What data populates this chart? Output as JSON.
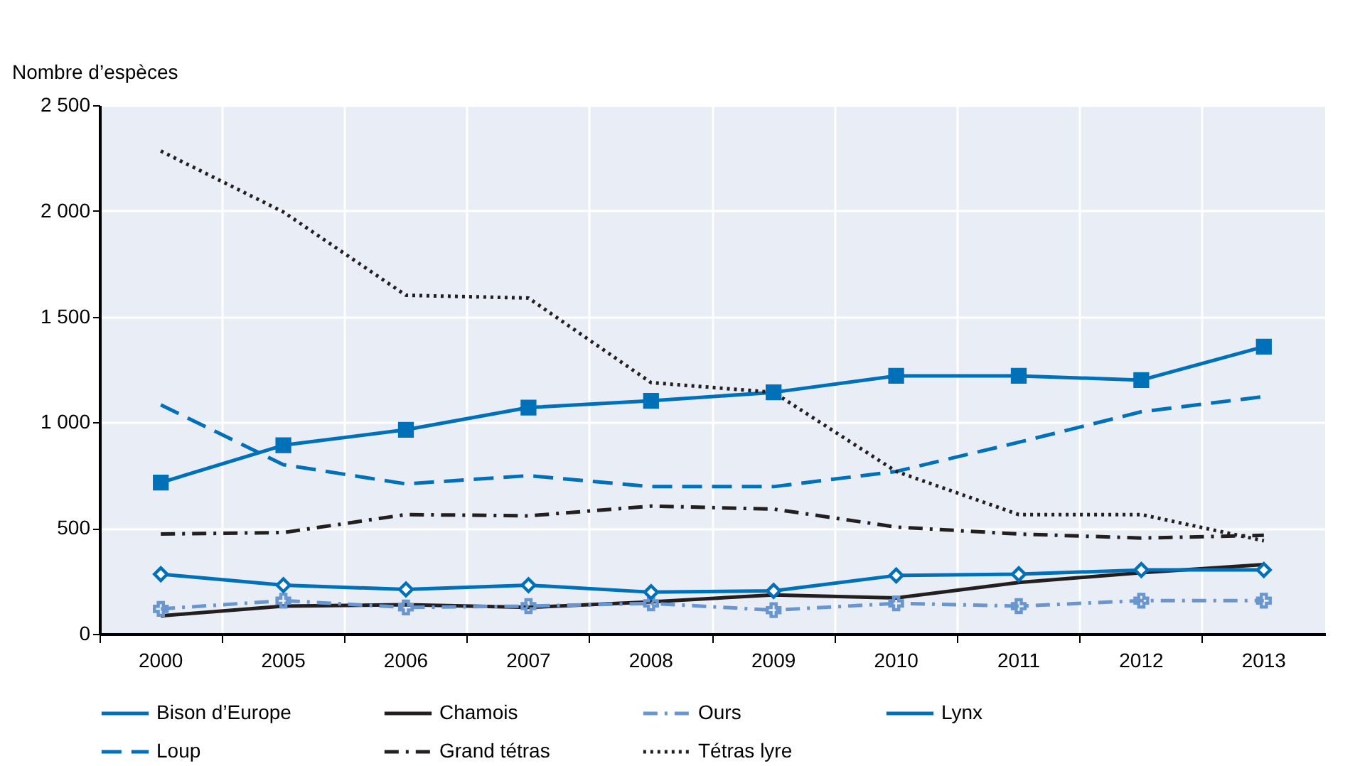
{
  "chart_data": {
    "type": "line",
    "ylabel": "Nombre d’espèces",
    "categories": [
      "2000",
      "2005",
      "2006",
      "2007",
      "2008",
      "2009",
      "2010",
      "2011",
      "2012",
      "2013"
    ],
    "series": [
      {
        "name": "Bison d’Europe",
        "color": "#0070b8",
        "marker": "square",
        "line_style": "solid",
        "values": [
          715,
          892,
          965,
          1070,
          1102,
          1142,
          1220,
          1220,
          1200,
          1358
        ]
      },
      {
        "name": "Chamois",
        "color": "#231f20",
        "line_style": "solid",
        "values": [
          85,
          131,
          138,
          125,
          151,
          184,
          170,
          243,
          289,
          328
        ]
      },
      {
        "name": "Ours",
        "color": "#6a96d0",
        "marker": "cross",
        "line_style": "dashdot",
        "values": [
          118,
          157,
          125,
          131,
          144,
          112,
          144,
          131,
          157,
          157
        ]
      },
      {
        "name": "Lynx",
        "color": "#0070b8",
        "marker": "diamond",
        "line_style": "solid",
        "values": [
          282,
          230,
          210,
          230,
          197,
          203,
          276,
          282,
          302,
          302
        ]
      },
      {
        "name": "Loup",
        "color": "#0070b8",
        "line_style": "dashed",
        "values": [
          1083,
          800,
          709,
          748,
          696,
          696,
          768,
          906,
          1050,
          1122
        ]
      },
      {
        "name": "Grand tétras",
        "color": "#231f20",
        "line_style": "dashdot",
        "values": [
          472,
          479,
          564,
          558,
          604,
          590,
          505,
          472,
          453,
          466
        ]
      },
      {
        "name": "Tétras lyre",
        "color": "#231f20",
        "line_style": "dotted",
        "values": [
          2283,
          1995,
          1601,
          1588,
          1188,
          1142,
          768,
          564,
          564,
          440
        ]
      }
    ],
    "ylim": [
      0,
      2500
    ],
    "yticks": [
      0,
      500,
      {
        "value": 1000,
        "label": "1 000"
      },
      {
        "value": 1500,
        "label": "1 500"
      },
      {
        "value": 2000,
        "label": "2 000"
      },
      {
        "value": 2500,
        "label": "2 500"
      }
    ],
    "grid": true,
    "legend": "bottom"
  }
}
